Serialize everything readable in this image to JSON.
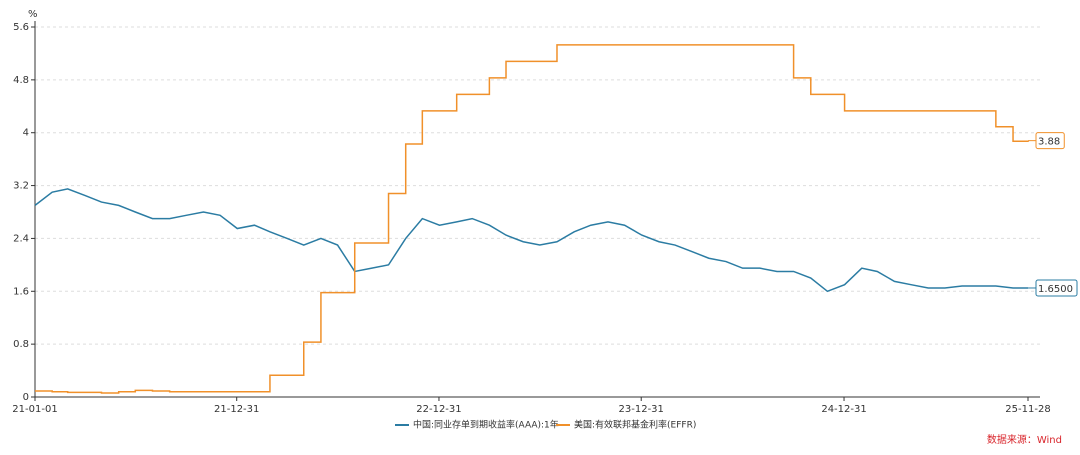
{
  "chart_data": {
    "type": "line",
    "ylabel": "%",
    "source": "数据来源：Wind",
    "x": [
      "21-01-01",
      "21-02-01",
      "21-03-01",
      "21-04-01",
      "21-05-01",
      "21-06-01",
      "21-07-01",
      "21-08-01",
      "21-09-01",
      "21-10-01",
      "21-11-01",
      "21-12-01",
      "22-01-01",
      "22-02-01",
      "22-03-01",
      "22-04-01",
      "22-05-01",
      "22-06-01",
      "22-07-01",
      "22-08-01",
      "22-09-01",
      "22-10-01",
      "22-11-01",
      "22-12-01",
      "23-01-01",
      "23-02-01",
      "23-03-01",
      "23-04-01",
      "23-05-01",
      "23-06-01",
      "23-07-01",
      "23-08-01",
      "23-09-01",
      "23-10-01",
      "23-11-01",
      "23-12-01",
      "24-01-01",
      "24-02-01",
      "24-03-01",
      "24-04-01",
      "24-05-01",
      "24-06-01",
      "24-07-01",
      "24-08-01",
      "24-09-01",
      "24-10-01",
      "24-11-01",
      "24-12-01",
      "25-01-01",
      "25-02-01",
      "25-03-01",
      "25-04-01",
      "25-05-01",
      "25-06-01",
      "25-07-01",
      "25-08-01",
      "25-09-01",
      "25-10-01",
      "25-11-01",
      "25-11-28"
    ],
    "xlim": [
      "21-01-01",
      "25-11-28"
    ],
    "xticks": [
      "21-01-01",
      "21-12-31",
      "22-12-31",
      "23-12-31",
      "24-12-31",
      "25-11-28"
    ],
    "ylim": [
      0,
      5.6
    ],
    "yticks": [
      0,
      0.8,
      1.6,
      2.4,
      3.2,
      4,
      4.8,
      5.6
    ],
    "grid": true,
    "legend": "bottom",
    "series": [
      {
        "name": "中国:同业存单到期收益率(AAA):1年",
        "color": "#2b7ca3",
        "drawstyle": "line",
        "values": [
          2.9,
          3.1,
          3.15,
          3.05,
          2.95,
          2.9,
          2.8,
          2.7,
          2.7,
          2.75,
          2.8,
          2.75,
          2.55,
          2.6,
          2.5,
          2.4,
          2.3,
          2.4,
          2.3,
          1.9,
          1.95,
          2.0,
          2.4,
          2.7,
          2.6,
          2.65,
          2.7,
          2.6,
          2.45,
          2.35,
          2.3,
          2.35,
          2.5,
          2.6,
          2.65,
          2.6,
          2.45,
          2.35,
          2.3,
          2.2,
          2.1,
          2.05,
          1.95,
          1.95,
          1.9,
          1.9,
          1.8,
          1.6,
          1.7,
          1.95,
          1.9,
          1.75,
          1.7,
          1.65,
          1.65,
          1.68,
          1.68,
          1.68,
          1.65,
          1.65
        ],
        "value_labels": [
          null,
          null,
          null,
          null,
          null,
          null,
          null,
          null,
          null,
          null,
          null,
          null,
          null,
          null,
          null,
          null,
          null,
          null,
          null,
          null,
          null,
          null,
          null,
          null,
          null,
          null,
          null,
          null,
          null,
          null,
          null,
          null,
          null,
          null,
          null,
          null,
          null,
          null,
          null,
          null,
          null,
          null,
          null,
          null,
          null,
          null,
          null,
          null,
          null,
          null,
          null,
          null,
          null,
          null,
          null,
          null,
          null,
          null,
          null,
          "1.6500"
        ]
      },
      {
        "name": "美国:有效联邦基金利率(EFFR)",
        "color": "#f0902a",
        "drawstyle": "steps-post",
        "values": [
          0.09,
          0.08,
          0.07,
          0.07,
          0.06,
          0.08,
          0.1,
          0.09,
          0.08,
          0.08,
          0.08,
          0.08,
          0.08,
          0.08,
          0.33,
          0.33,
          0.83,
          1.58,
          1.58,
          2.33,
          2.33,
          3.08,
          3.83,
          4.33,
          4.33,
          4.58,
          4.58,
          4.83,
          5.08,
          5.08,
          5.08,
          5.33,
          5.33,
          5.33,
          5.33,
          5.33,
          5.33,
          5.33,
          5.33,
          5.33,
          5.33,
          5.33,
          5.33,
          5.33,
          5.33,
          4.83,
          4.58,
          4.58,
          4.33,
          4.33,
          4.33,
          4.33,
          4.33,
          4.33,
          4.33,
          4.33,
          4.33,
          4.09,
          3.87,
          3.88
        ],
        "value_labels": [
          null,
          null,
          null,
          null,
          null,
          null,
          null,
          null,
          null,
          null,
          null,
          null,
          null,
          null,
          null,
          null,
          null,
          null,
          null,
          null,
          null,
          null,
          null,
          null,
          null,
          null,
          null,
          null,
          null,
          null,
          null,
          null,
          null,
          null,
          null,
          null,
          null,
          null,
          null,
          null,
          null,
          null,
          null,
          null,
          null,
          null,
          null,
          null,
          null,
          null,
          null,
          null,
          null,
          null,
          null,
          null,
          null,
          null,
          null,
          "3.88"
        ]
      }
    ]
  }
}
